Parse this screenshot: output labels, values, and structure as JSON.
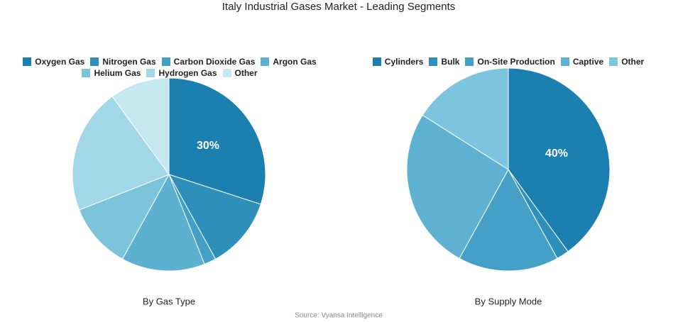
{
  "title": "Italy Industrial Gases Market - Leading Segments",
  "source": "Source: Vyansa Intelligence",
  "chart_data": [
    {
      "type": "pie",
      "subtitle": "By Gas Type",
      "categories": [
        "Oxygen Gas",
        "Nitrogen Gas",
        "Carbon Dioxide Gas",
        "Argon Gas",
        "Helium Gas",
        "Hydrogen Gas",
        "Other"
      ],
      "values": [
        30,
        12,
        2,
        14,
        11,
        21,
        10
      ],
      "value_labels": [
        "30%",
        null,
        null,
        null,
        null,
        null,
        null
      ],
      "colors": [
        "#1b7fb0",
        "#2e8fba",
        "#449fc6",
        "#5cb0d0",
        "#7cc3dc",
        "#a1d7e6",
        "#c5e8f0"
      ]
    },
    {
      "type": "pie",
      "subtitle": "By Supply Mode",
      "categories": [
        "Cylinders",
        "Bulk",
        "On-Site Production",
        "Captive",
        "Other"
      ],
      "values": [
        40,
        2,
        16,
        26,
        16
      ],
      "value_labels": [
        "40%",
        null,
        null,
        null,
        null
      ],
      "colors": [
        "#1b7fb0",
        "#2e8fba",
        "#45a0c7",
        "#5fb1d2",
        "#7dc4de"
      ]
    }
  ]
}
